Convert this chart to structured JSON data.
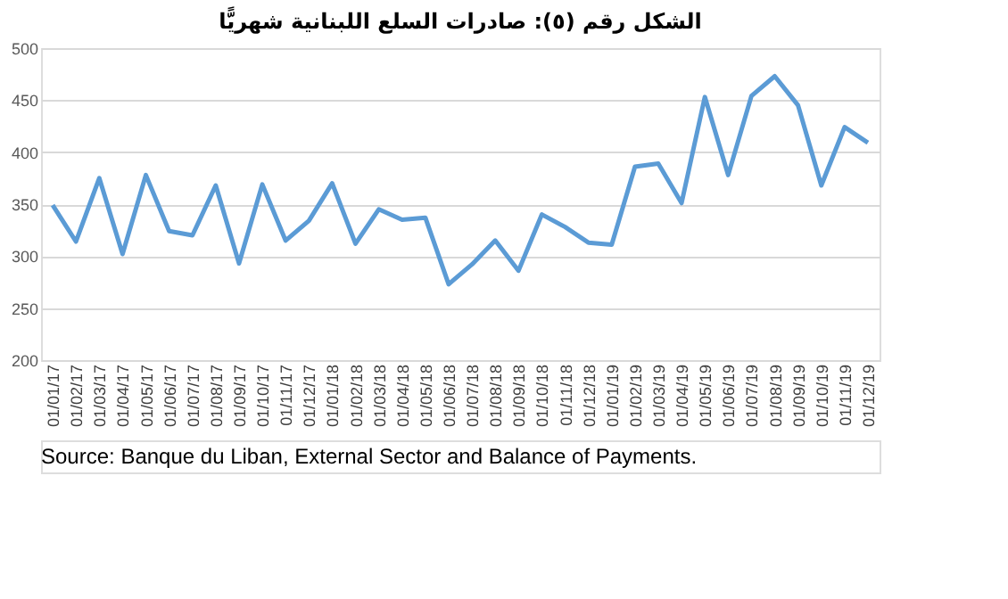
{
  "chart_data": {
    "type": "line",
    "title": "الشكل رقم (٥): صادرات السلع اللبنانية شهريًّا",
    "categories": [
      "01/01/17",
      "01/02/17",
      "01/03/17",
      "01/04/17",
      "01/05/17",
      "01/06/17",
      "01/07/17",
      "01/08/17",
      "01/09/17",
      "01/10/17",
      "01/11/17",
      "01/12/17",
      "01/01/18",
      "01/02/18",
      "01/03/18",
      "01/04/18",
      "01/05/18",
      "01/06/18",
      "01/07/18",
      "01/08/18",
      "01/09/18",
      "01/10/18",
      "01/11/18",
      "01/12/18",
      "01/01/19",
      "01/02/19",
      "01/03/19",
      "01/04/19",
      "01/05/19",
      "01/06/19",
      "01/07/19",
      "01/08/19",
      "01/09/19",
      "01/10/19",
      "01/11/19",
      "01/12/19"
    ],
    "series": [
      {
        "color": "#5b9bd5",
        "values": [
          349,
          314,
          375,
          302,
          378,
          324,
          320,
          368,
          293,
          369,
          315,
          334,
          370,
          312,
          345,
          335,
          337,
          273,
          292,
          315,
          286,
          340,
          328,
          313,
          311,
          386,
          389,
          351,
          453,
          378,
          454,
          473,
          445,
          368,
          424,
          409
        ]
      }
    ],
    "ylim": [
      200,
      500
    ],
    "yticks": [
      200,
      250,
      300,
      350,
      400,
      450,
      500
    ],
    "grid": "y",
    "marker": "none",
    "line_style": "solid",
    "annotations": [
      "Source: Banque du Liban, External Sector and Balance of Payments."
    ]
  }
}
